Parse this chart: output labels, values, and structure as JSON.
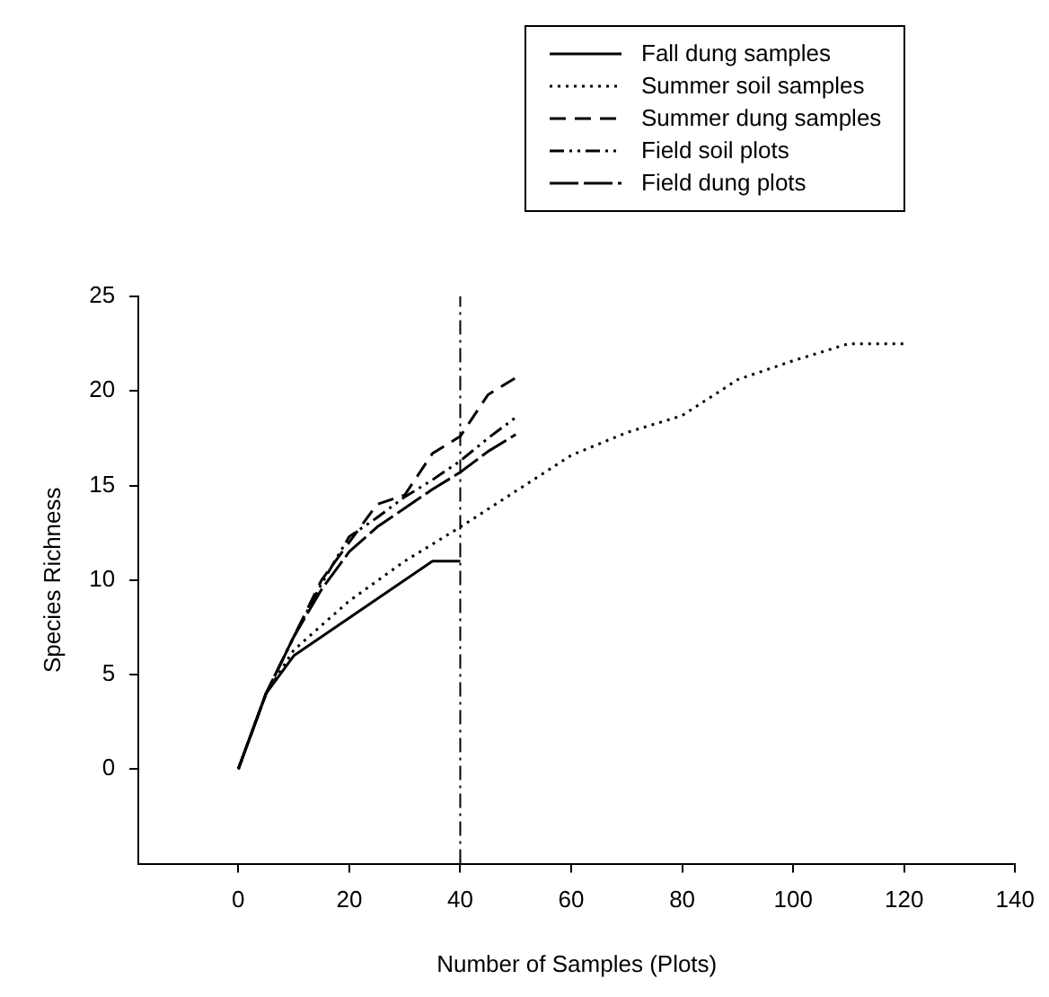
{
  "chart_data": {
    "type": "line",
    "xlabel": "Number of Samples (Plots)",
    "ylabel": "Species Richness",
    "xlim": [
      -18,
      140
    ],
    "xticks": [
      0,
      20,
      40,
      60,
      80,
      100,
      120,
      140
    ],
    "ylim": [
      -5,
      25
    ],
    "yticks": [
      0,
      5,
      10,
      15,
      20,
      25
    ],
    "grid": false,
    "legend": "top right",
    "marker": "none",
    "series": [
      {
        "name": "Fall dung samples",
        "color": "#000000",
        "line_style": "solid",
        "x": [
          0,
          5,
          10,
          35,
          40
        ],
        "values": [
          0,
          4,
          6,
          11,
          11
        ]
      },
      {
        "name": "Summer soil samples",
        "color": "#000000",
        "line_style": "dotted",
        "x": [
          0,
          5,
          10,
          20,
          30,
          40,
          50,
          60,
          70,
          80,
          90,
          100,
          110,
          120
        ],
        "values": [
          0,
          4,
          6.3,
          8.9,
          11,
          12.8,
          14.7,
          16.6,
          17.8,
          18.7,
          20.6,
          21.6,
          22.5,
          22.5
        ]
      },
      {
        "name": "Summer dung samples",
        "color": "#000000",
        "line_style": "dashed",
        "x": [
          0,
          5,
          10,
          15,
          20,
          25,
          30,
          35,
          40,
          45,
          50
        ],
        "values": [
          0,
          4,
          7,
          10,
          12,
          14,
          14.5,
          16.7,
          17.6,
          19.8,
          20.7
        ]
      },
      {
        "name": "Field soil plots",
        "color": "#000000",
        "line_style": "dashdotdot",
        "x": [
          0,
          5,
          10,
          15,
          20,
          25,
          30,
          35,
          40,
          45,
          50
        ],
        "values": [
          0,
          4,
          7,
          9.8,
          12.3,
          13.3,
          14.4,
          15.3,
          16.3,
          17.5,
          18.6
        ]
      },
      {
        "name": "Field dung plots",
        "color": "#000000",
        "line_style": "longdash",
        "x": [
          0,
          5,
          10,
          15,
          20,
          25,
          30,
          35,
          40,
          45,
          50
        ],
        "values": [
          0,
          4,
          7,
          9.5,
          11.5,
          12.8,
          13.8,
          14.8,
          15.7,
          16.8,
          17.7
        ]
      }
    ],
    "ref_lines": [
      {
        "axis": "x",
        "value": 40,
        "color": "#000000",
        "line_style": "dashdot"
      }
    ]
  }
}
